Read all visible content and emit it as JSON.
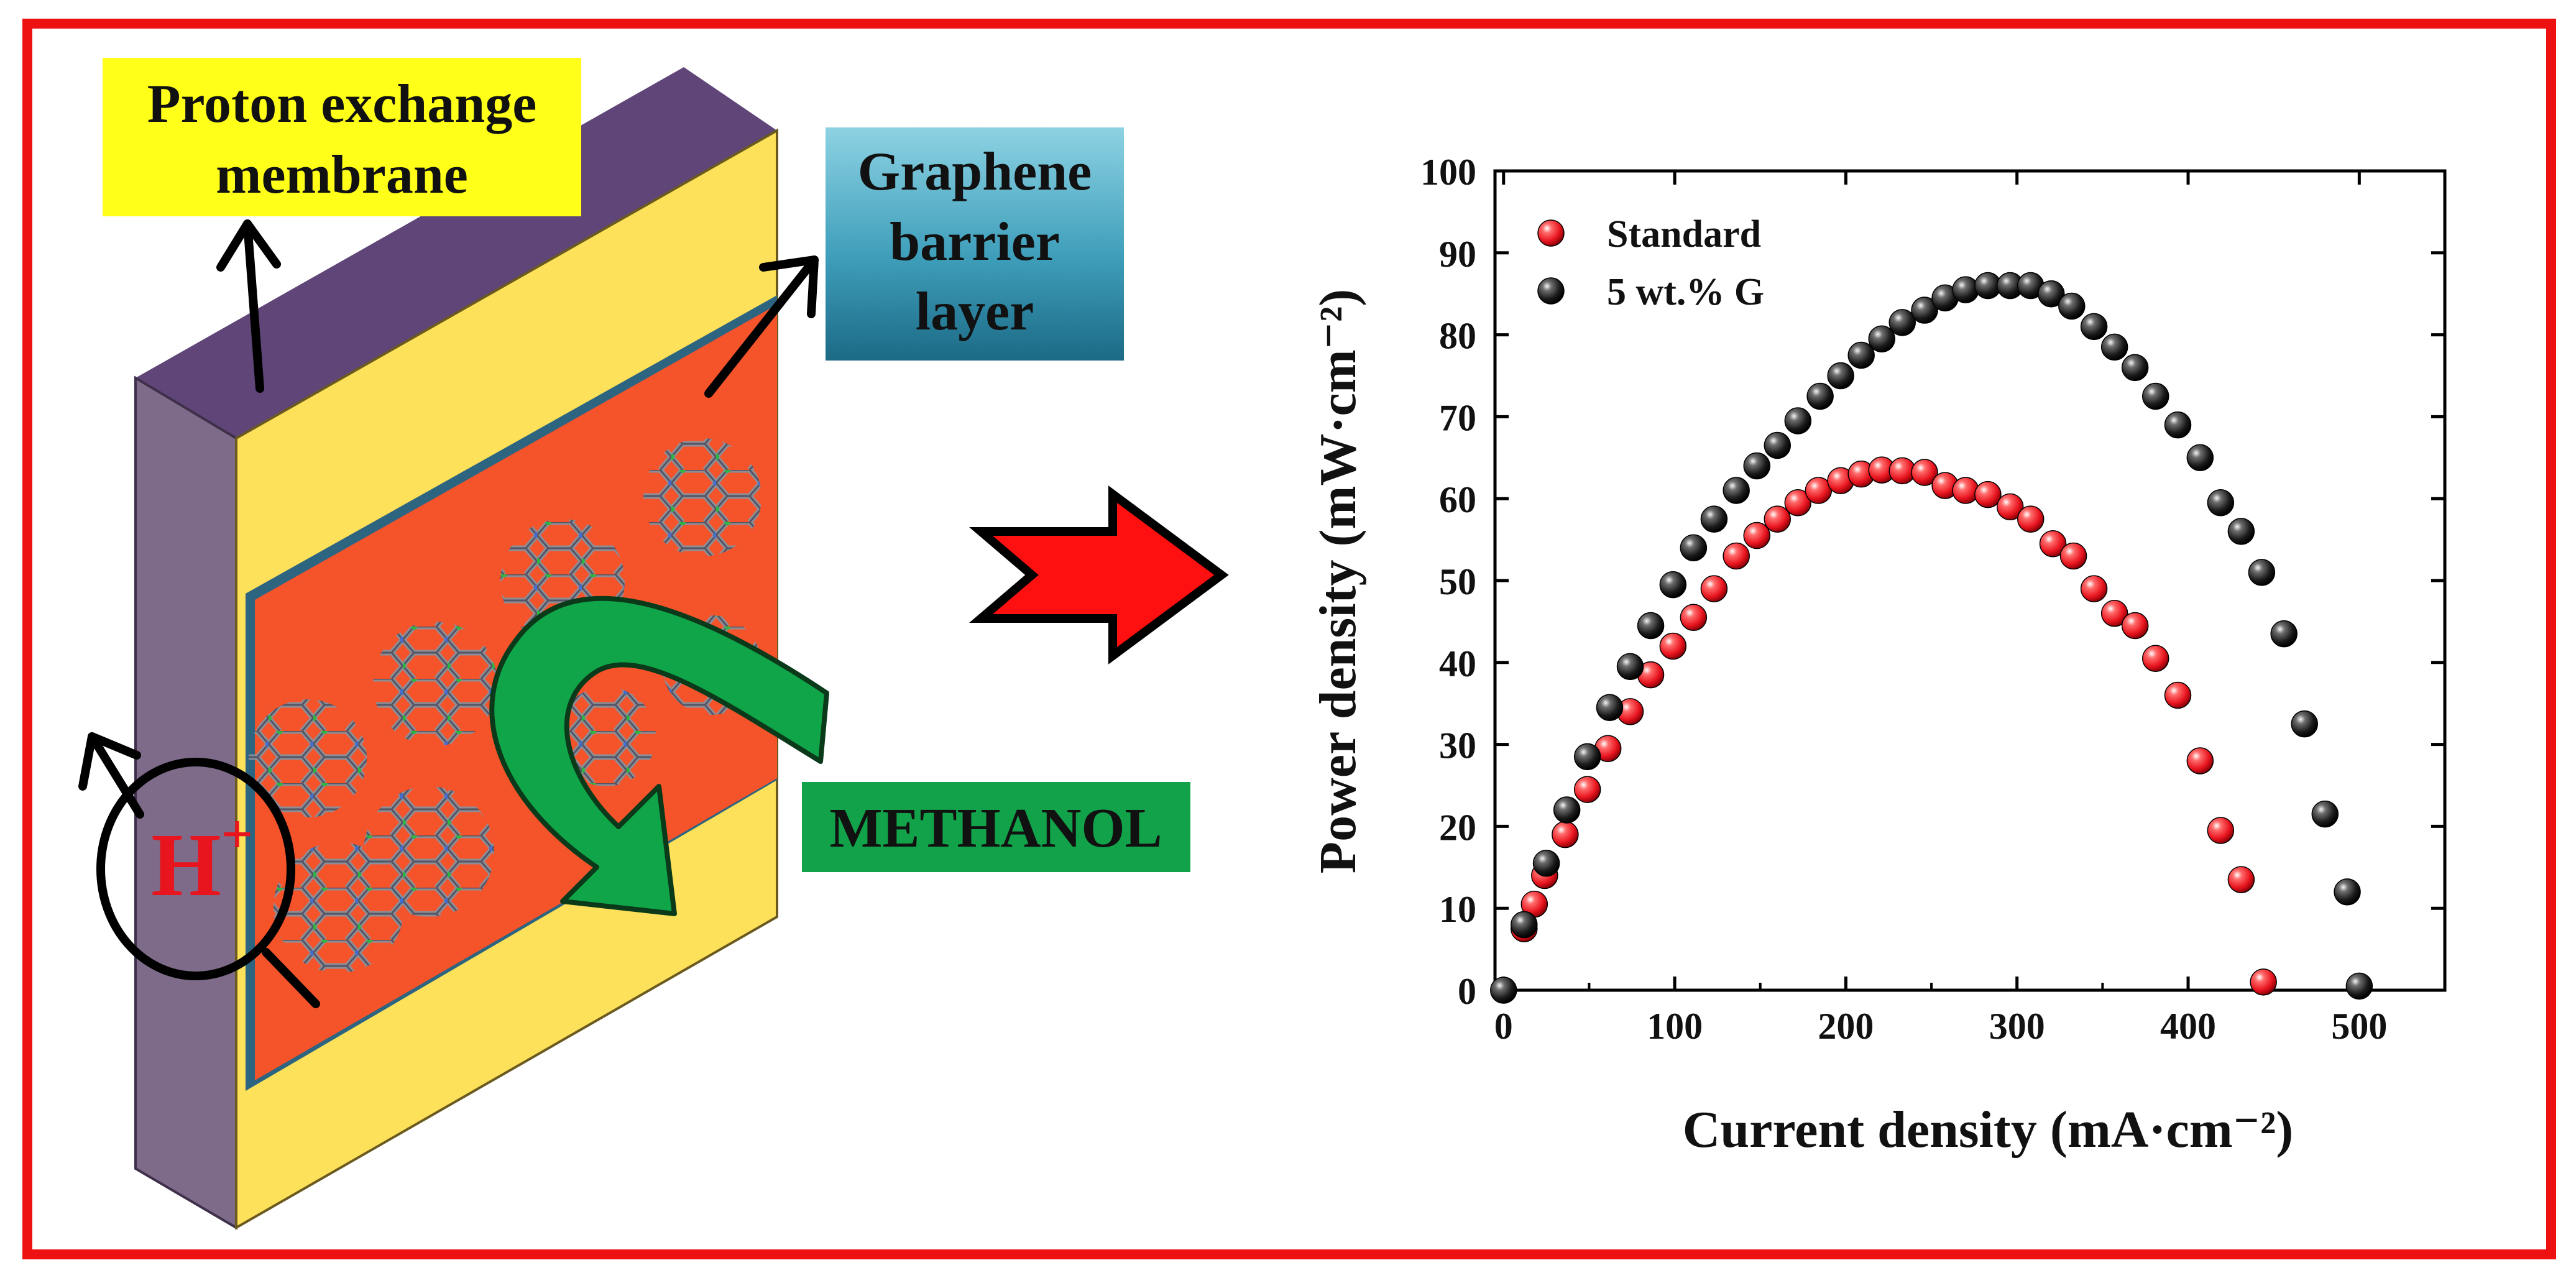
{
  "diagram": {
    "label_membrane": [
      "Proton exchange",
      "membrane"
    ],
    "label_barrier": [
      "Graphene",
      "barrier",
      "layer"
    ],
    "label_methanol": "METHANOL",
    "label_proton": "H",
    "label_proton_sup": "+",
    "colors": {
      "frame": "#ee1111",
      "membrane_top": "#5f4578",
      "membrane_side": "#7e6a89",
      "membrane_face": "#fde15a",
      "barrier": "#f5532a",
      "methanol_arrow": "#0fa548",
      "methanol_box": "#12a24a",
      "membrane_label_bg": "#ffff1a",
      "barrier_label_bg": "#3fa4bf",
      "process_arrow": "#ff1010"
    },
    "icons": [
      "graphene-hexagon-icon",
      "process-arrow-icon",
      "u-turn-arrow-icon"
    ]
  },
  "chart_data": {
    "type": "scatter",
    "xlabel": "Current density (mA·cm⁻²)",
    "ylabel": "Power density (mW·cm⁻²)",
    "xlim": [
      -5,
      550
    ],
    "ylim": [
      0,
      100
    ],
    "xticks": [
      0,
      100,
      200,
      300,
      400,
      500
    ],
    "yticks": [
      0,
      10,
      20,
      30,
      40,
      50,
      60,
      70,
      80,
      90,
      100
    ],
    "grid": false,
    "legend_position": "top-left",
    "series": [
      {
        "name": "Standard",
        "color": "#e8141e",
        "points": [
          [
            12,
            7.5
          ],
          [
            18,
            10.5
          ],
          [
            24,
            14
          ],
          [
            36,
            19
          ],
          [
            49,
            24.5
          ],
          [
            61,
            29.5
          ],
          [
            74,
            34
          ],
          [
            86,
            38.5
          ],
          [
            99,
            42
          ],
          [
            111,
            45.5
          ],
          [
            123,
            49
          ],
          [
            136,
            53
          ],
          [
            148,
            55.5
          ],
          [
            160,
            57.5
          ],
          [
            172,
            59.5
          ],
          [
            184,
            61
          ],
          [
            197,
            62.2
          ],
          [
            209,
            63
          ],
          [
            221,
            63.5
          ],
          [
            233,
            63.4
          ],
          [
            246,
            63.2
          ],
          [
            258,
            61.6
          ],
          [
            270,
            61
          ],
          [
            283,
            60.5
          ],
          [
            296,
            59
          ],
          [
            308,
            57.5
          ],
          [
            321,
            54.5
          ],
          [
            333,
            53
          ],
          [
            345,
            49
          ],
          [
            357,
            46
          ],
          [
            369,
            44.5
          ],
          [
            381,
            40.5
          ],
          [
            394,
            36
          ],
          [
            407,
            28
          ],
          [
            419,
            19.5
          ],
          [
            431,
            13.5
          ],
          [
            444,
            1
          ]
        ]
      },
      {
        "name": "5 wt.% G",
        "color": "#111111",
        "points": [
          [
            0,
            0
          ],
          [
            12,
            8
          ],
          [
            25,
            15.5
          ],
          [
            37,
            22
          ],
          [
            49,
            28.5
          ],
          [
            62,
            34.5
          ],
          [
            74,
            39.5
          ],
          [
            86,
            44.5
          ],
          [
            99,
            49.5
          ],
          [
            111,
            54
          ],
          [
            123,
            57.5
          ],
          [
            136,
            61
          ],
          [
            148,
            64
          ],
          [
            160,
            66.5
          ],
          [
            172,
            69.5
          ],
          [
            185,
            72.5
          ],
          [
            197,
            75
          ],
          [
            209,
            77.5
          ],
          [
            221,
            79.5
          ],
          [
            233,
            81.5
          ],
          [
            246,
            83
          ],
          [
            258,
            84.5
          ],
          [
            270,
            85.5
          ],
          [
            283,
            86
          ],
          [
            296,
            86
          ],
          [
            308,
            86
          ],
          [
            320,
            85
          ],
          [
            332,
            83.5
          ],
          [
            345,
            81
          ],
          [
            357,
            78.5
          ],
          [
            369,
            76
          ],
          [
            381,
            72.5
          ],
          [
            394,
            69
          ],
          [
            407,
            65
          ],
          [
            419,
            59.5
          ],
          [
            431,
            56
          ],
          [
            443,
            51
          ],
          [
            456,
            43.5
          ],
          [
            468,
            32.5
          ],
          [
            480,
            21.5
          ],
          [
            493,
            12
          ],
          [
            500,
            0.5
          ]
        ]
      }
    ]
  }
}
